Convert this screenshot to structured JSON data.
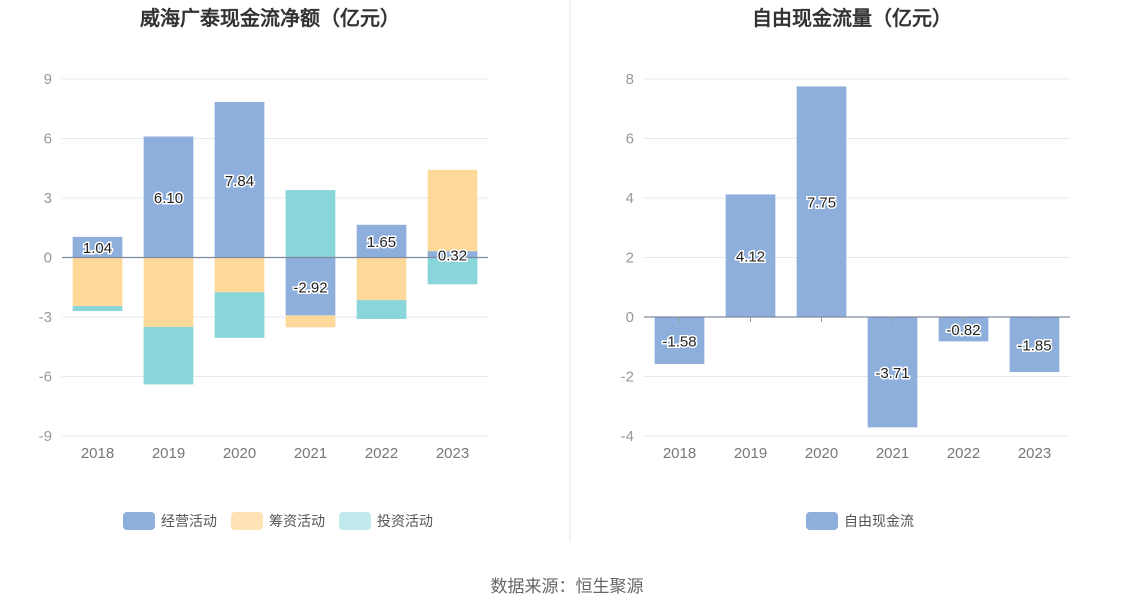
{
  "source_text": "数据来源：恒生聚源",
  "chart_data": [
    {
      "type": "bar",
      "stacked": true,
      "title": "威海广泰现金流净额（亿元）",
      "categories": [
        "2018",
        "2019",
        "2020",
        "2021",
        "2022",
        "2023"
      ],
      "ylim": [
        -9,
        9
      ],
      "yticks": [
        9,
        6,
        3,
        0,
        -3,
        -6,
        -9
      ],
      "grid": true,
      "legend_position": "bottom",
      "series": [
        {
          "name": "经营活动",
          "color": "#8eaedb",
          "values": [
            1.04,
            6.1,
            7.84,
            -2.92,
            1.65,
            0.32
          ],
          "labels": [
            "1.04",
            "6.10",
            "7.84",
            "-2.92",
            "1.65",
            "0.32"
          ]
        },
        {
          "name": "筹资活动",
          "color": "#ffd99a",
          "values": [
            -2.45,
            -3.5,
            -1.75,
            -0.6,
            -2.15,
            4.1
          ]
        },
        {
          "name": "投资活动",
          "color": "#88d6d9",
          "values": [
            -0.25,
            -2.9,
            -2.3,
            3.4,
            -0.95,
            -1.35
          ]
        }
      ],
      "legend_colors": [
        "#8eaedb",
        "#ffe3b5",
        "#bfe9ec"
      ]
    },
    {
      "type": "bar",
      "title": "自由现金流量（亿元）",
      "categories": [
        "2018",
        "2019",
        "2020",
        "2021",
        "2022",
        "2023"
      ],
      "ylim": [
        -4,
        8
      ],
      "yticks": [
        8,
        6,
        4,
        2,
        0,
        -2,
        -4
      ],
      "grid": true,
      "legend_position": "bottom",
      "series": [
        {
          "name": "自由现金流",
          "color": "#8eaedb",
          "values": [
            -1.58,
            4.12,
            7.75,
            -3.71,
            -0.82,
            -1.85
          ],
          "labels": [
            "-1.58",
            "4.12",
            "7.75",
            "-3.71",
            "-0.82",
            "-1.85"
          ]
        }
      ]
    }
  ]
}
